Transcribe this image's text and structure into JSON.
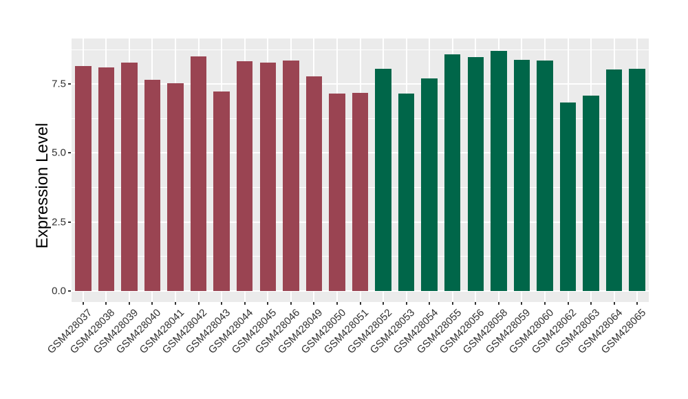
{
  "chart_data": {
    "type": "bar",
    "title": "",
    "xlabel": "",
    "ylabel": "Expression Level",
    "categories": [
      "GSM428037",
      "GSM428038",
      "GSM428039",
      "GSM428040",
      "GSM428041",
      "GSM428042",
      "GSM428043",
      "GSM428044",
      "GSM428045",
      "GSM428046",
      "GSM428049",
      "GSM428050",
      "GSM428051",
      "GSM428052",
      "GSM428053",
      "GSM428054",
      "GSM428055",
      "GSM428056",
      "GSM428058",
      "GSM428059",
      "GSM428060",
      "GSM428062",
      "GSM428063",
      "GSM428064",
      "GSM428065"
    ],
    "values": [
      8.15,
      8.1,
      8.28,
      7.65,
      7.52,
      8.5,
      7.22,
      8.32,
      8.27,
      8.34,
      7.78,
      7.15,
      7.17,
      8.05,
      7.15,
      7.7,
      8.58,
      8.47,
      8.7,
      8.37,
      8.34,
      6.83,
      7.07,
      8.02,
      8.05
    ],
    "bar_groups": [
      "group1",
      "group1",
      "group1",
      "group1",
      "group1",
      "group1",
      "group1",
      "group1",
      "group1",
      "group1",
      "group1",
      "group1",
      "group1",
      "group2",
      "group2",
      "group2",
      "group2",
      "group2",
      "group2",
      "group2",
      "group2",
      "group2",
      "group2",
      "group2",
      "group2"
    ],
    "palette": {
      "group1": "#9A4452",
      "group2": "#006649"
    },
    "bar_width_fraction": 0.7,
    "ylim": [
      -0.4,
      9.15
    ],
    "y_ticks": {
      "values": [
        0,
        2.5,
        5,
        7.5
      ],
      "labels": [
        "0.0",
        "2.5",
        "5.0",
        "7.5"
      ],
      "minor_values": [
        1.25,
        3.75,
        6.25,
        8.75
      ]
    },
    "grid": true,
    "legend": "none",
    "colors": {
      "figure_bg": "#FFFFFF",
      "panel_bg": "#EBEBEB",
      "grid": "#FFFFFF",
      "tick_mark": "#333333",
      "axis_text": "#303030",
      "axis_title": "#000000"
    }
  }
}
